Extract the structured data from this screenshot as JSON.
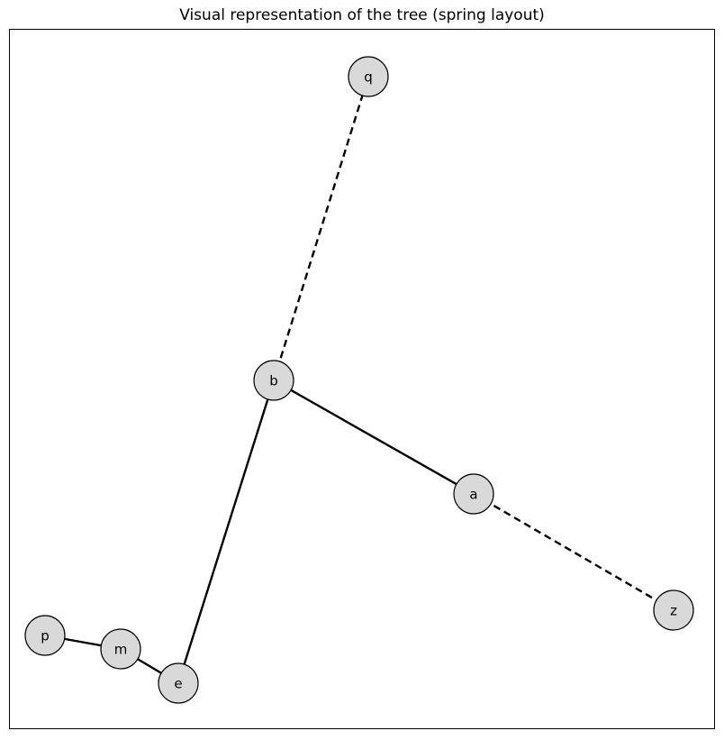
{
  "title": "Visual representation of the tree (spring layout)",
  "graph": {
    "nodes": [
      {
        "id": "q",
        "label": "q"
      },
      {
        "id": "b",
        "label": "b"
      },
      {
        "id": "a",
        "label": "a"
      },
      {
        "id": "z",
        "label": "z"
      },
      {
        "id": "p",
        "label": "p"
      },
      {
        "id": "m",
        "label": "m"
      },
      {
        "id": "e",
        "label": "e"
      }
    ],
    "edges": [
      {
        "source": "b",
        "target": "q",
        "style": "dashed"
      },
      {
        "source": "b",
        "target": "a",
        "style": "solid"
      },
      {
        "source": "a",
        "target": "z",
        "style": "dashed"
      },
      {
        "source": "b",
        "target": "e",
        "style": "solid"
      },
      {
        "source": "e",
        "target": "m",
        "style": "solid"
      },
      {
        "source": "m",
        "target": "p",
        "style": "solid"
      }
    ],
    "colors": {
      "node_fill": "#d9d9d9",
      "node_stroke": "#000000",
      "edge": "#000000"
    }
  }
}
